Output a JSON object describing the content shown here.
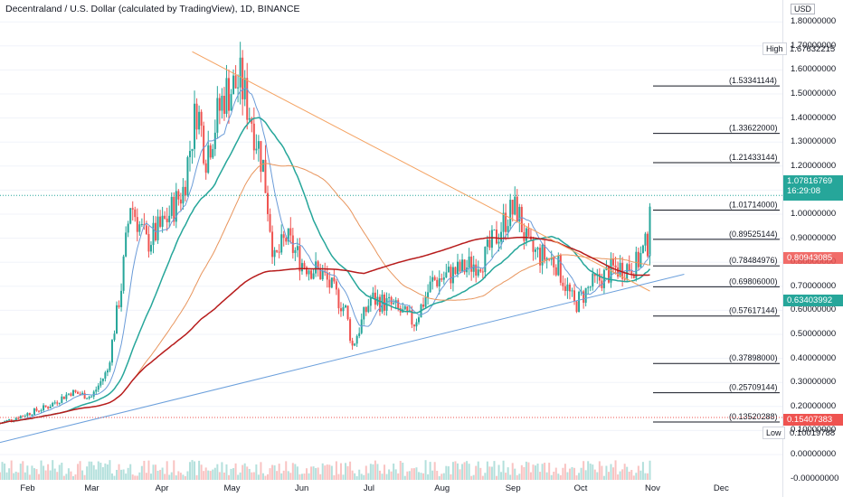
{
  "title": "Decentraland / U.S. Dollar (calculated by TradingView), 1D, BINANCE",
  "colors": {
    "up": "#26a69a",
    "down": "#ef5350",
    "sma_fast": "#26a69a",
    "sma_mid": "#6a9bd8",
    "sma_slow": "#e8955d",
    "sma_long": "#b71c1c",
    "fib": "#131722",
    "trend_down": "#f4a261",
    "trend_up": "#6ca0dc",
    "price_tag": "#26a69a",
    "prev_tag": "#ef5350",
    "line_tag": "#26a69a"
  },
  "price_axis": {
    "unit": "USD",
    "ticks": [
      "1.80000000",
      "1.70000000",
      "1.60000000",
      "1.50000000",
      "1.40000000",
      "1.30000000",
      "1.20000000",
      "1.10000000",
      "1.00000000",
      "0.90000000",
      "0.80000000",
      "0.70000000",
      "0.60000000",
      "0.50000000",
      "0.40000000",
      "0.30000000",
      "0.20000000",
      "0.10000000",
      "0.00000000",
      "-0.00000000"
    ],
    "high_label": "High",
    "high_value": "1.67632215",
    "low_label": "Low",
    "low_value": "0.10019788",
    "last_price": "1.07816769",
    "countdown": "16:29:08",
    "level_a": "0.80943085",
    "level_b": "0.63403992",
    "level_c": "0.15407383"
  },
  "time_axis": [
    "Feb",
    "Mar",
    "Apr",
    "May",
    "Jun",
    "Jul",
    "Aug",
    "Sep",
    "Oct",
    "Nov",
    "Dec"
  ],
  "fib_levels": [
    {
      "label": "(1.53341144)",
      "value": 1.53341144
    },
    {
      "label": "(1.33622000)",
      "value": 1.33622
    },
    {
      "label": "(1.21433144)",
      "value": 1.21433144
    },
    {
      "label": "(1.01714000)",
      "value": 1.01714
    },
    {
      "label": "(0.89525144)",
      "value": 0.89525144
    },
    {
      "label": "(0.78484976)",
      "value": 0.78484976
    },
    {
      "label": "(0.69806000)",
      "value": 0.69806
    },
    {
      "label": "(0.57617144)",
      "value": 0.57617144
    },
    {
      "label": "(0.37898000)",
      "value": 0.37898
    },
    {
      "label": "(0.25709144)",
      "value": 0.25709144
    },
    {
      "label": "(0.13520288)",
      "value": 0.13520288
    }
  ],
  "chart_data": {
    "type": "candlestick",
    "title": "Decentraland / U.S. Dollar (calculated by TradingView), 1D, BINANCE",
    "y_unit": "USD",
    "ylim": [
      -0.1,
      1.85
    ],
    "x_range": [
      "2021-01-20",
      "2021-12-20"
    ],
    "close_path": [
      [
        "2021-01-20",
        0.13
      ],
      [
        "2021-02-01",
        0.17
      ],
      [
        "2021-02-10",
        0.2
      ],
      [
        "2021-02-20",
        0.26
      ],
      [
        "2021-03-01",
        0.24
      ],
      [
        "2021-03-08",
        0.35
      ],
      [
        "2021-03-14",
        0.7
      ],
      [
        "2021-03-18",
        1.05
      ],
      [
        "2021-03-25",
        0.88
      ],
      [
        "2021-04-01",
        0.95
      ],
      [
        "2021-04-10",
        1.1
      ],
      [
        "2021-04-16",
        1.45
      ],
      [
        "2021-04-20",
        1.25
      ],
      [
        "2021-04-28",
        1.5
      ],
      [
        "2021-05-05",
        1.55
      ],
      [
        "2021-05-10",
        1.4
      ],
      [
        "2021-05-15",
        1.2
      ],
      [
        "2021-05-20",
        0.8
      ],
      [
        "2021-05-25",
        0.9
      ],
      [
        "2021-06-01",
        0.8
      ],
      [
        "2021-06-10",
        0.75
      ],
      [
        "2021-06-20",
        0.6
      ],
      [
        "2021-06-23",
        0.45
      ],
      [
        "2021-07-01",
        0.65
      ],
      [
        "2021-07-10",
        0.62
      ],
      [
        "2021-07-20",
        0.55
      ],
      [
        "2021-07-28",
        0.72
      ],
      [
        "2021-08-10",
        0.77
      ],
      [
        "2021-08-20",
        0.82
      ],
      [
        "2021-08-30",
        1.0
      ],
      [
        "2021-09-03",
        1.02
      ],
      [
        "2021-09-08",
        0.85
      ],
      [
        "2021-09-20",
        0.8
      ],
      [
        "2021-09-28",
        0.62
      ],
      [
        "2021-10-05",
        0.7
      ],
      [
        "2021-10-15",
        0.77
      ],
      [
        "2021-10-25",
        0.79
      ],
      [
        "2021-10-30",
        0.88
      ],
      [
        "2021-10-31",
        1.078
      ]
    ],
    "high": 1.67632215,
    "low": 0.10019788,
    "last": 1.07816769,
    "annotations": [
      "High 1.67632215",
      "Low 0.10019788"
    ]
  }
}
